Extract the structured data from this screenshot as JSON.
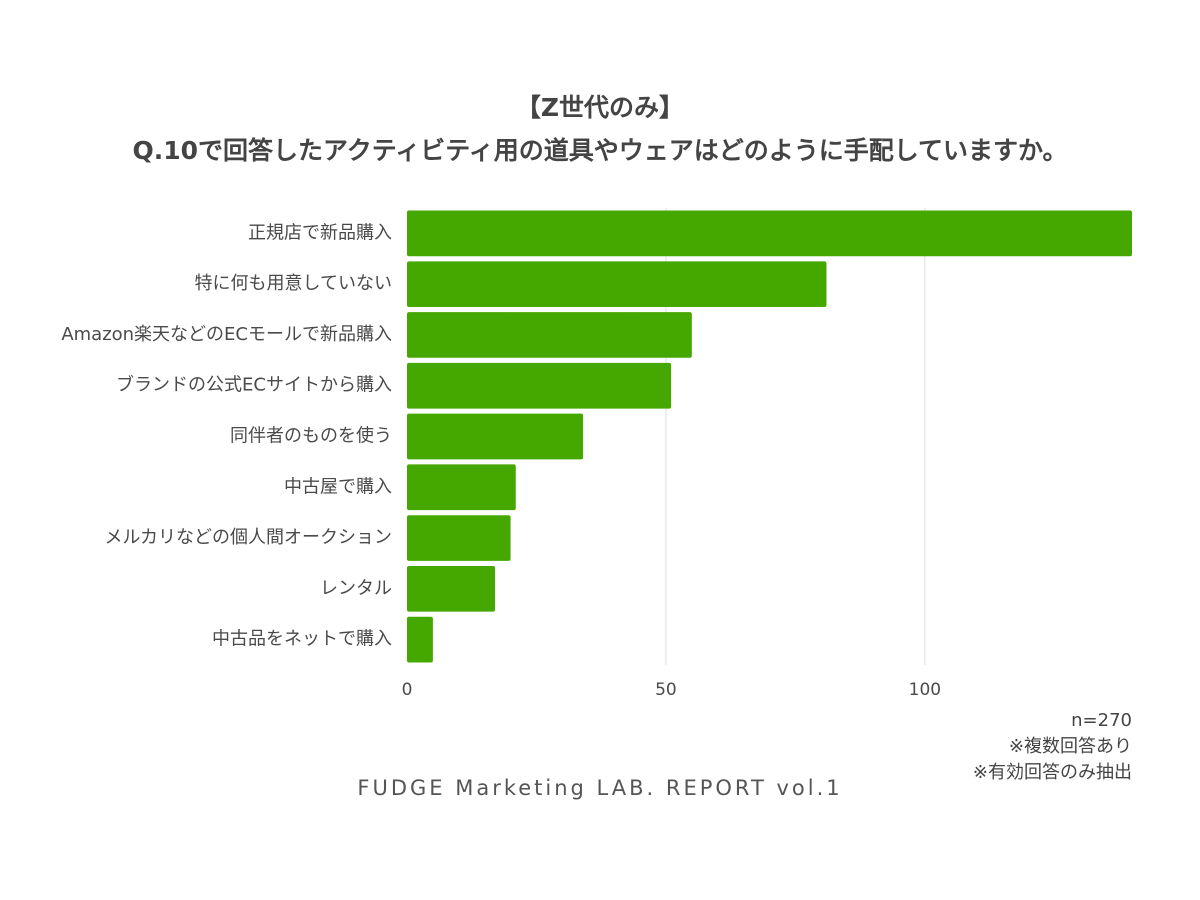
{
  "title": {
    "line1": "【Z世代のみ】",
    "line2": "Q.10で回答したアクティビティ用の道具やウェアはどのように手配していますか。"
  },
  "colors": {
    "bar": "#44a800",
    "grid": "#dddddd",
    "text": "#4a4a4a"
  },
  "chart_data": {
    "type": "bar",
    "orientation": "horizontal",
    "categories": [
      "正規店で新品購入",
      "特に何も用意していない",
      "Amazon楽天などのECモールで新品購入",
      "ブランドの公式ECサイトから購入",
      "同伴者のものを使う",
      "中古屋で購入",
      "メルカリなどの個人間オークション",
      "レンタル",
      "中古品をネットで購入"
    ],
    "values": [
      140,
      81,
      55,
      51,
      34,
      21,
      20,
      17,
      5
    ],
    "xlim": [
      0,
      140
    ],
    "xticks": [
      0,
      50,
      100
    ],
    "grid": true,
    "legend": "none"
  },
  "notes": {
    "n": "n=270",
    "multiple": "※複数回答あり",
    "valid": "※有効回答のみ抽出"
  },
  "footer": "FUDGE Marketing LAB. REPORT vol.1"
}
